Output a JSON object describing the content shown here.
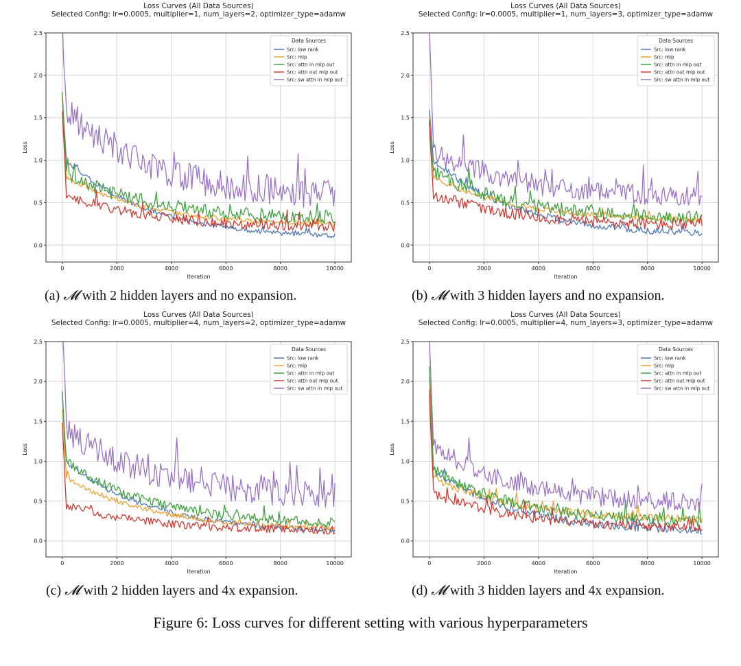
{
  "figure_caption": "Figure 6: Loss curves for different setting with various hyperparameters",
  "colors": {
    "low rank": "#4c78b5",
    "mlp": "#f0a030",
    "attn in mlp out": "#3ea23e",
    "attn out mlp out": "#d03a32",
    "sw attn in mlp out": "#9a72c7"
  },
  "panels": [
    {
      "caption_label": "(a)",
      "caption_symbol": "𝓜",
      "caption_text": "with 2 hidden layers and no expansion."
    },
    {
      "caption_label": "(b)",
      "caption_symbol": "𝓜",
      "caption_text": "with 3 hidden layers and no expansion."
    },
    {
      "caption_label": "(c)",
      "caption_symbol": "𝓜",
      "caption_text": "with 2 hidden layers and 4x expansion."
    },
    {
      "caption_label": "(d)",
      "caption_symbol": "𝓜",
      "caption_text": "with 3 hidden layers and 4x expansion."
    }
  ],
  "chart_data": [
    {
      "type": "line",
      "title": "Loss Curves (All Data Sources)",
      "subtitle": "Selected Config: lr=0.0005, multiplier=1, num_layers=2, optimizer_type=adamw",
      "xlabel": "Iteration",
      "ylabel": "Loss",
      "xlim": [
        -600,
        10600
      ],
      "ylim": [
        -0.2,
        2.5
      ],
      "xticks": [
        0,
        2000,
        4000,
        6000,
        8000,
        10000
      ],
      "yticks": [
        0.0,
        0.5,
        1.0,
        1.5,
        2.0,
        2.5
      ],
      "grid": true,
      "legend_title": "Data Sources",
      "legend_position": "top-right",
      "series": [
        {
          "name": "Src: low rank",
          "key": "low rank",
          "start": 1.7,
          "mid": 1.0,
          "end": 0.07,
          "noise": 0.03,
          "seed": 11
        },
        {
          "name": "Src: mlp",
          "key": "mlp",
          "start": 1.75,
          "mid": 0.8,
          "end": 0.22,
          "noise": 0.025,
          "seed": 12
        },
        {
          "name": "Src: attn in mlp out",
          "key": "attn in mlp out",
          "start": 1.75,
          "mid": 0.85,
          "end": 0.3,
          "noise": 0.08,
          "seed": 13
        },
        {
          "name": "Src: attn out mlp out",
          "key": "attn out mlp out",
          "start": 1.6,
          "mid": 0.6,
          "end": 0.2,
          "noise": 0.06,
          "seed": 14
        },
        {
          "name": "Src: sw attn in mlp out",
          "key": "sw attn in mlp out",
          "start": 2.6,
          "mid": 1.6,
          "end": 0.55,
          "noise": 0.17,
          "seed": 15
        }
      ]
    },
    {
      "type": "line",
      "title": "Loss Curves (All Data Sources)",
      "subtitle": "Selected Config: lr=0.0005, multiplier=1, num_layers=3, optimizer_type=adamw",
      "xlabel": "Iteration",
      "ylabel": "Loss",
      "xlim": [
        -600,
        10600
      ],
      "ylim": [
        -0.2,
        2.5
      ],
      "xticks": [
        0,
        2000,
        4000,
        6000,
        8000,
        10000
      ],
      "yticks": [
        0.0,
        0.5,
        1.0,
        1.5,
        2.0,
        2.5
      ],
      "grid": true,
      "legend_title": "Data Sources",
      "legend_position": "top-right",
      "series": [
        {
          "name": "Src: low rank",
          "key": "low rank",
          "start": 1.6,
          "mid": 1.0,
          "end": 0.1,
          "noise": 0.04,
          "seed": 21
        },
        {
          "name": "Src: mlp",
          "key": "mlp",
          "start": 1.5,
          "mid": 0.8,
          "end": 0.28,
          "noise": 0.03,
          "seed": 22
        },
        {
          "name": "Src: attn in mlp out",
          "key": "attn in mlp out",
          "start": 1.5,
          "mid": 0.85,
          "end": 0.3,
          "noise": 0.08,
          "seed": 23
        },
        {
          "name": "Src: attn out mlp out",
          "key": "attn out mlp out",
          "start": 1.4,
          "mid": 0.6,
          "end": 0.22,
          "noise": 0.07,
          "seed": 24
        },
        {
          "name": "Src: sw attn in mlp out",
          "key": "sw attn in mlp out",
          "start": 2.6,
          "mid": 1.1,
          "end": 0.55,
          "noise": 0.12,
          "seed": 25
        }
      ]
    },
    {
      "type": "line",
      "title": "Loss Curves (All Data Sources)",
      "subtitle": "Selected Config: lr=0.0005, multiplier=4, num_layers=2, optimizer_type=adamw",
      "xlabel": "Iteration",
      "ylabel": "Loss",
      "xlim": [
        -600,
        10600
      ],
      "ylim": [
        -0.2,
        2.5
      ],
      "xticks": [
        0,
        2000,
        4000,
        6000,
        8000,
        10000
      ],
      "yticks": [
        0.0,
        0.5,
        1.0,
        1.5,
        2.0,
        2.5
      ],
      "grid": true,
      "legend_title": "Data Sources",
      "legend_position": "top-right",
      "series": [
        {
          "name": "Src: low rank",
          "key": "low rank",
          "start": 1.85,
          "mid": 1.0,
          "end": 0.1,
          "noise": 0.03,
          "seed": 31
        },
        {
          "name": "Src: mlp",
          "key": "mlp",
          "start": 1.65,
          "mid": 0.8,
          "end": 0.14,
          "noise": 0.03,
          "seed": 32
        },
        {
          "name": "Src: attn in mlp out",
          "key": "attn in mlp out",
          "start": 1.8,
          "mid": 1.0,
          "end": 0.2,
          "noise": 0.06,
          "seed": 33
        },
        {
          "name": "Src: attn out mlp out",
          "key": "attn out mlp out",
          "start": 1.5,
          "mid": 0.45,
          "end": 0.12,
          "noise": 0.05,
          "seed": 34
        },
        {
          "name": "Src: sw attn in mlp out",
          "key": "sw attn in mlp out",
          "start": 2.6,
          "mid": 1.4,
          "end": 0.55,
          "noise": 0.17,
          "seed": 35
        }
      ]
    },
    {
      "type": "line",
      "title": "Loss Curves (All Data Sources)",
      "subtitle": "Selected Config: lr=0.0005, multiplier=4, num_layers=3, optimizer_type=adamw",
      "xlabel": "Iteration",
      "ylabel": "Loss",
      "xlim": [
        -600,
        10600
      ],
      "ylim": [
        -0.2,
        2.5
      ],
      "xticks": [
        0,
        2000,
        4000,
        6000,
        8000,
        10000
      ],
      "yticks": [
        0.0,
        0.5,
        1.0,
        1.5,
        2.0,
        2.5
      ],
      "grid": true,
      "legend_title": "Data Sources",
      "legend_position": "top-right",
      "series": [
        {
          "name": "Src: low rank",
          "key": "low rank",
          "start": 1.9,
          "mid": 0.9,
          "end": 0.1,
          "noise": 0.05,
          "seed": 41
        },
        {
          "name": "Src: mlp",
          "key": "mlp",
          "start": 2.0,
          "mid": 0.8,
          "end": 0.25,
          "noise": 0.05,
          "seed": 42
        },
        {
          "name": "Src: attn in mlp out",
          "key": "attn in mlp out",
          "start": 2.2,
          "mid": 0.9,
          "end": 0.22,
          "noise": 0.07,
          "seed": 43
        },
        {
          "name": "Src: attn out mlp out",
          "key": "attn out mlp out",
          "start": 1.8,
          "mid": 0.6,
          "end": 0.15,
          "noise": 0.06,
          "seed": 44
        },
        {
          "name": "Src: sw attn in mlp out",
          "key": "sw attn in mlp out",
          "start": 2.6,
          "mid": 1.2,
          "end": 0.45,
          "noise": 0.12,
          "seed": 45
        }
      ]
    }
  ]
}
